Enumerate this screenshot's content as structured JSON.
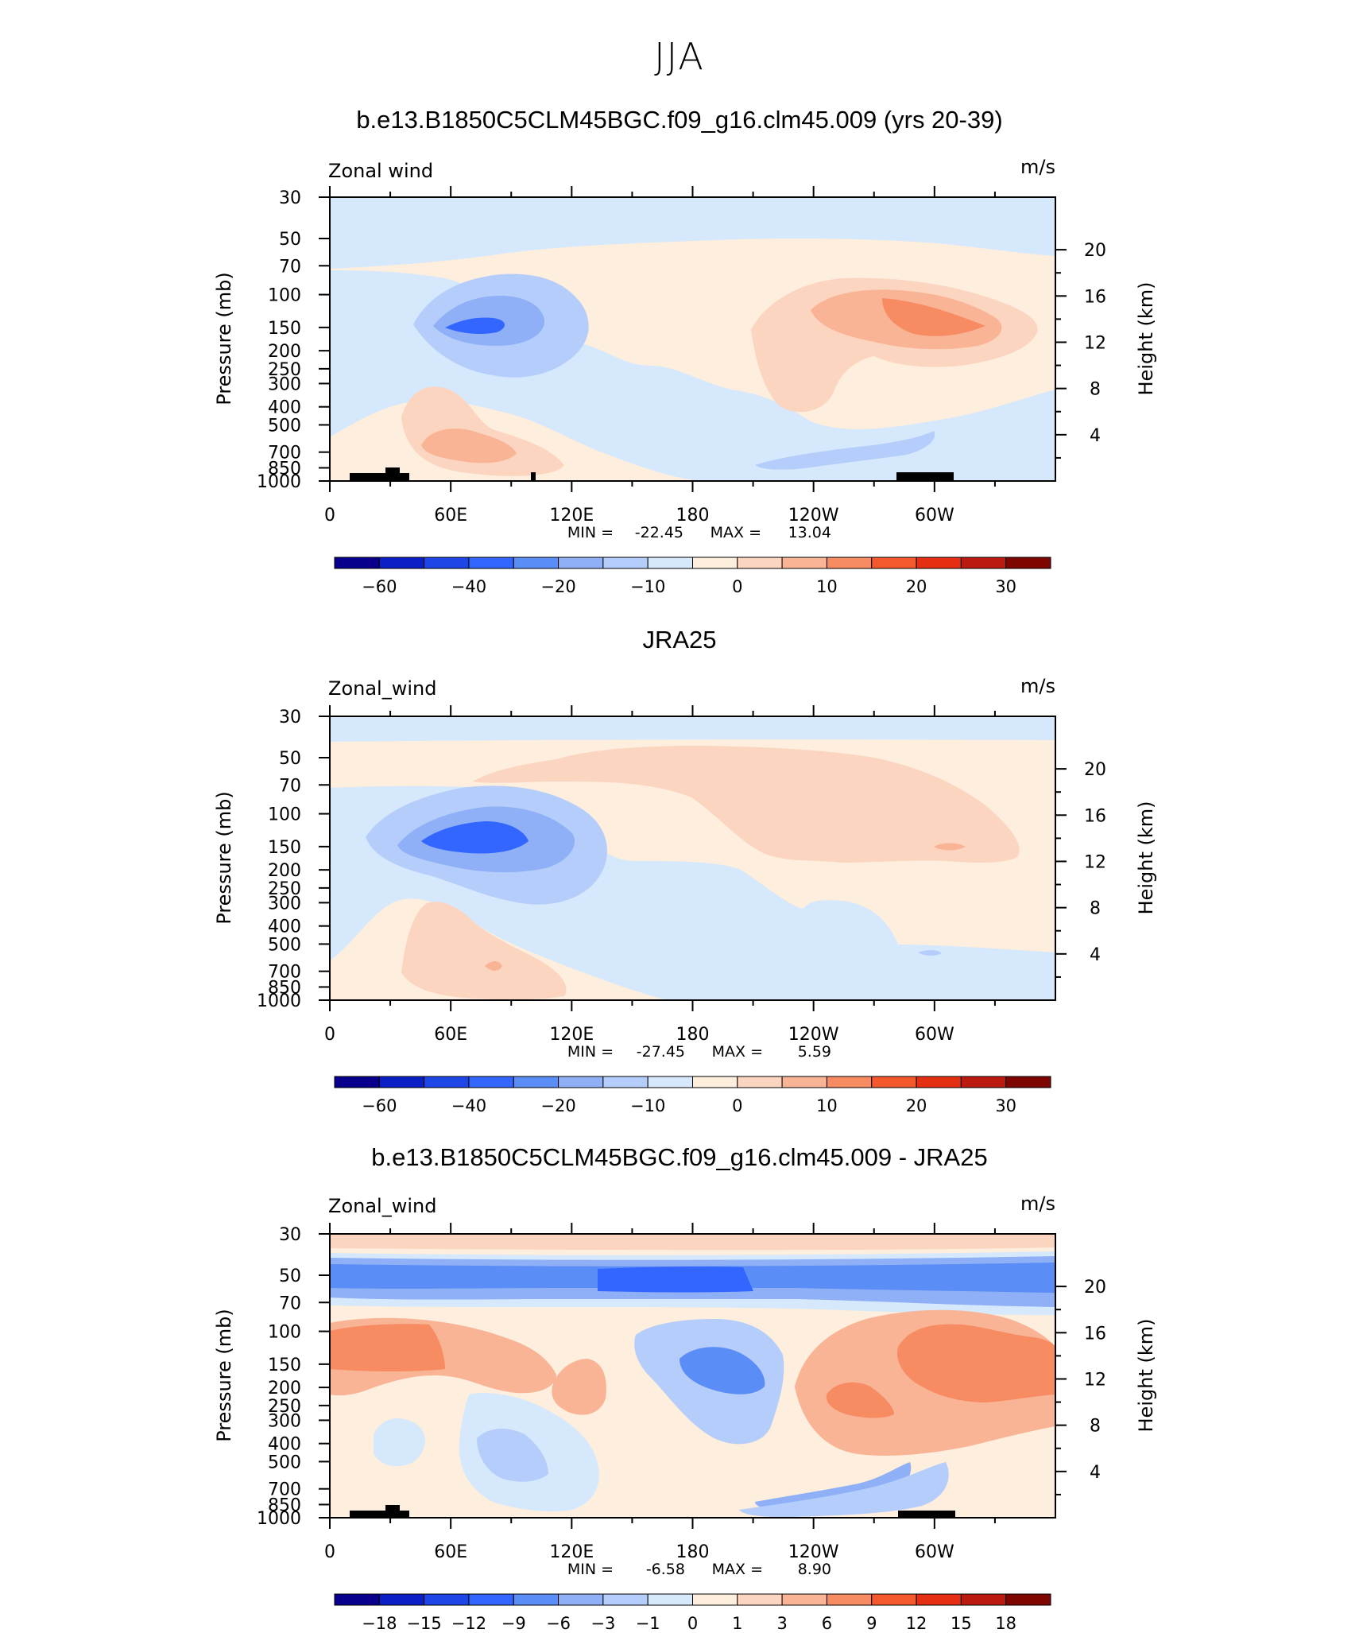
{
  "title": "JJA",
  "colors": {
    "levels_14": [
      "#08008c",
      "#0a1fc6",
      "#1e46e6",
      "#3366ff",
      "#5a8df5",
      "#8fb0f6",
      "#b5cdfa",
      "#d6e8fb",
      "#fdeedd",
      "#fbd5c0",
      "#f9b496",
      "#f78b62",
      "#f4582d",
      "#e42f12",
      "#bb1a10",
      "#7d0600"
    ],
    "land": "#000000"
  },
  "chart_data": [
    {
      "type": "heatmap",
      "title": "b.e13.B1850C5CLM45BGC.f09_g16.clm45.009 (yrs 20-39)",
      "left_label": "Zonal wind",
      "right_label": "m/s",
      "ylabel": "Pressure (mb)",
      "ylabel_right": "Height (km)",
      "x_ticks": [
        "0",
        "60E",
        "120E",
        "180",
        "120W",
        "60W"
      ],
      "y_ticks": [
        "30",
        "50",
        "70",
        "100",
        "150",
        "200",
        "250",
        "300",
        "400",
        "500",
        "700",
        "850",
        "1000"
      ],
      "height_ticks": [
        "20",
        "16",
        "12",
        "8",
        "4"
      ],
      "min_label": "MIN =",
      "min": "-22.45",
      "max_label": "MAX =",
      "max": "13.04",
      "colorbar_labels": [
        "-60",
        "-40",
        "-20",
        "-10",
        "0",
        "10",
        "20",
        "30"
      ]
    },
    {
      "type": "heatmap",
      "title": "JRA25",
      "left_label": "Zonal_wind",
      "right_label": "m/s",
      "ylabel": "Pressure (mb)",
      "ylabel_right": "Height (km)",
      "x_ticks": [
        "0",
        "60E",
        "120E",
        "180",
        "120W",
        "60W"
      ],
      "y_ticks": [
        "30",
        "50",
        "70",
        "100",
        "150",
        "200",
        "250",
        "300",
        "400",
        "500",
        "700",
        "850",
        "1000"
      ],
      "height_ticks": [
        "20",
        "16",
        "12",
        "8",
        "4"
      ],
      "min_label": "MIN =",
      "min": "-27.45",
      "max_label": "MAX =",
      "max": "5.59",
      "colorbar_labels": [
        "-60",
        "-40",
        "-20",
        "-10",
        "0",
        "10",
        "20",
        "30"
      ]
    },
    {
      "type": "heatmap",
      "title": "b.e13.B1850C5CLM45BGC.f09_g16.clm45.009 - JRA25",
      "left_label": "Zonal_wind",
      "right_label": "m/s",
      "ylabel": "Pressure (mb)",
      "ylabel_right": "Height (km)",
      "x_ticks": [
        "0",
        "60E",
        "120E",
        "180",
        "120W",
        "60W"
      ],
      "y_ticks": [
        "30",
        "50",
        "70",
        "100",
        "150",
        "200",
        "250",
        "300",
        "400",
        "500",
        "700",
        "850",
        "1000"
      ],
      "height_ticks": [
        "20",
        "16",
        "12",
        "8",
        "4"
      ],
      "min_label": "MIN =",
      "min": "-6.58",
      "max_label": "MAX =",
      "max": "8.90",
      "colorbar_labels": [
        "-18",
        "-15",
        "-12",
        "-9",
        "-6",
        "-3",
        "-1",
        "0",
        "1",
        "3",
        "6",
        "9",
        "12",
        "15",
        "18"
      ]
    }
  ]
}
